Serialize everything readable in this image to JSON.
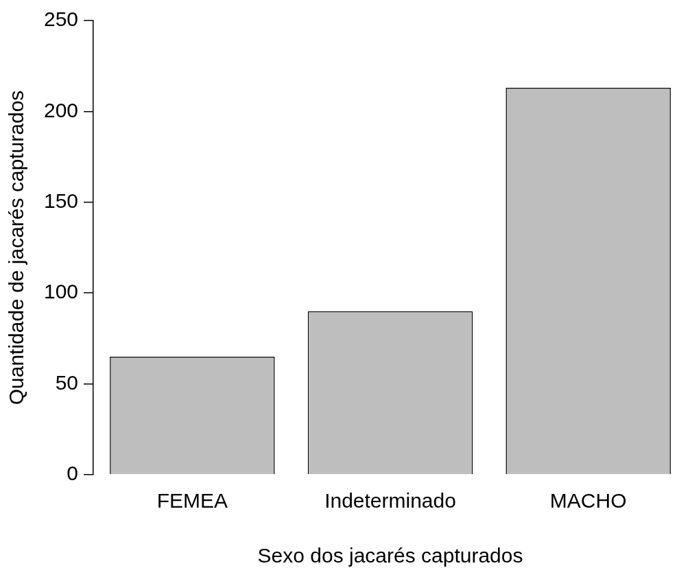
{
  "chart_data": {
    "type": "bar",
    "xlabel": "Sexo dos jacarés capturados",
    "ylabel": "Quantidade de jacarés capturados",
    "categories": [
      "FEMEA",
      "Indeterminado",
      "MACHO"
    ],
    "values": [
      65,
      90,
      213
    ],
    "color": "#bebebe",
    "ylim": [
      0,
      250
    ],
    "yticks": [
      0,
      50,
      100,
      150,
      200,
      250
    ],
    "grid": false,
    "legend": false
  }
}
